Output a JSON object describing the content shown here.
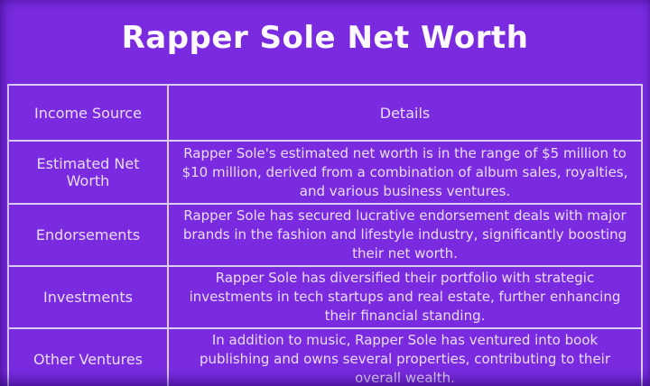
{
  "page": {
    "title": "Rapper Sole Net Worth"
  },
  "colors": {
    "background": "#7a2be0",
    "table_border": "#dccdf5",
    "title_text": "#fdfaff",
    "table_text": "#e9dcfb",
    "edge_shadow": "#23005f"
  },
  "table": {
    "headers": {
      "source": "Income Source",
      "details": "Details"
    },
    "rows": [
      {
        "source": "Estimated Net Worth",
        "details": "Rapper Sole's estimated net worth is in the range of $5 million to $10 million, derived from a combination of album sales, royalties, and various business ventures."
      },
      {
        "source": "Endorsements",
        "details": "Rapper Sole has secured lucrative endorsement deals with major brands in the fashion and lifestyle industry, significantly boosting their net worth."
      },
      {
        "source": "Investments",
        "details": "Rapper Sole has diversified their portfolio with strategic investments in tech startups and real estate, further enhancing their financial standing."
      },
      {
        "source": "Other Ventures",
        "details": "In addition to music, Rapper Sole has ventured into book publishing and owns several properties, contributing to their overall wealth."
      }
    ]
  }
}
